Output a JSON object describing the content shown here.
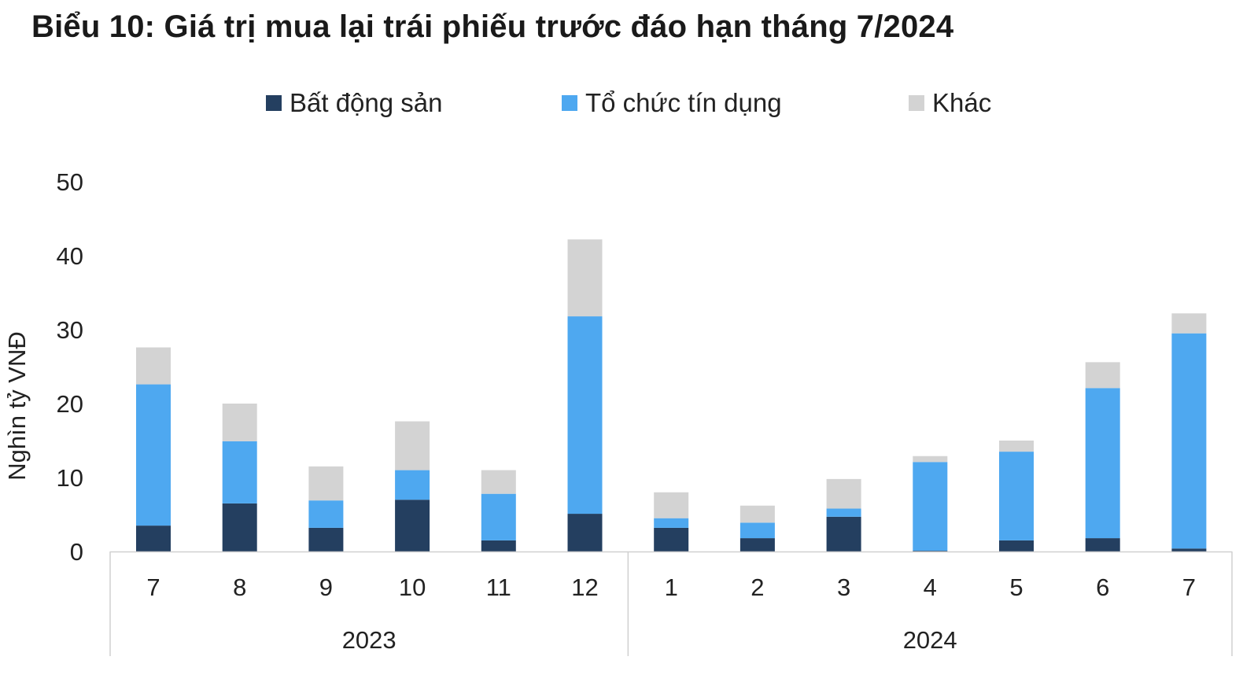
{
  "chart_data": {
    "type": "bar",
    "stacked": true,
    "title": "Biểu 10: Giá trị mua lại trái phiếu trước đáo hạn tháng 7/2024",
    "ylabel": "Nghìn tỷ VNĐ",
    "xlabel": "",
    "ylim": [
      0,
      50
    ],
    "yticks": [
      0,
      10,
      20,
      30,
      40,
      50
    ],
    "categories": [
      "7",
      "8",
      "9",
      "10",
      "11",
      "12",
      "1",
      "2",
      "3",
      "4",
      "5",
      "6",
      "7"
    ],
    "groups": [
      {
        "label": "2023",
        "count": 6
      },
      {
        "label": "2024",
        "count": 7
      }
    ],
    "legend_position": "top-center",
    "grid": false,
    "series": [
      {
        "name": "Bất động sản",
        "color": "#243f60",
        "values": [
          3.5,
          6.5,
          3.2,
          7.0,
          1.5,
          5.1,
          3.2,
          1.8,
          4.7,
          0.1,
          1.5,
          1.8,
          0.4
        ]
      },
      {
        "name": "Tổ chức tín dụng",
        "color": "#4ea8f0",
        "values": [
          19.1,
          8.4,
          3.7,
          4.0,
          6.3,
          26.7,
          1.3,
          2.1,
          1.1,
          12.0,
          12.0,
          20.3,
          29.1
        ]
      },
      {
        "name": "Khác",
        "color": "#d3d3d3",
        "values": [
          5.0,
          5.1,
          4.6,
          6.6,
          3.2,
          10.4,
          3.5,
          2.3,
          4.0,
          0.8,
          1.5,
          3.5,
          2.7
        ]
      }
    ]
  }
}
